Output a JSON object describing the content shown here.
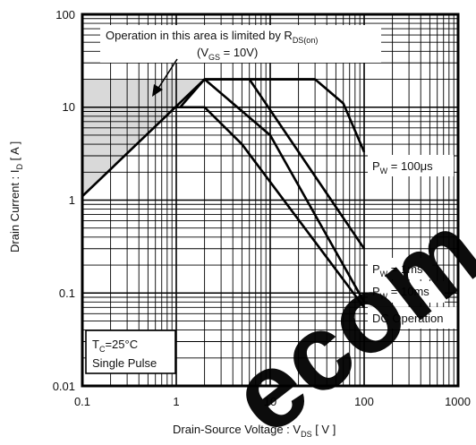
{
  "chart_data": {
    "type": "line",
    "xscale": "log",
    "yscale": "log",
    "xlim": [
      0.1,
      1000
    ],
    "ylim": [
      0.01,
      100
    ],
    "grid": true,
    "xticks": [
      "0.1",
      "1",
      "10",
      "100",
      "1000"
    ],
    "yticks": [
      "100",
      "10",
      "1",
      "0.1",
      "0.01"
    ],
    "xlabel": {
      "main": "Drain-Source  Voltage : V",
      "sub": "DS",
      "unit": " [ V ]"
    },
    "ylabel": {
      "main": "Drain  Current : I",
      "sub": "D",
      "unit": " [ A ]"
    },
    "limit_note": {
      "line1_main": "Operation in this area is limited by R",
      "line1_sub": "DS(on)",
      "line2_open": "(V",
      "line2_sub": "GS",
      "line2_close": " = 10V)"
    },
    "conditions": {
      "tc_main": "T",
      "tc_sub": "C",
      "tc_value": "=25°C",
      "pulse": "Single Pulse"
    },
    "rdson_limit": {
      "x": [
        0.1,
        2.0
      ],
      "y": [
        1.1,
        20
      ]
    },
    "series": [
      {
        "label_main": "P",
        "label_sub": "W",
        "label_value": " = 100μs",
        "x": [
          2.0,
          30,
          60,
          100
        ],
        "y": [
          20,
          20,
          11,
          3.3
        ]
      },
      {
        "label_main": "P",
        "label_sub": "W",
        "label_value": " = 1ms",
        "x": [
          6,
          100
        ],
        "y": [
          20,
          0.3
        ]
      },
      {
        "label_main": "P",
        "label_sub": "W",
        "label_value": " = 10ms",
        "x": [
          1.1,
          2.0,
          10,
          100
        ],
        "y": [
          10,
          20,
          5,
          0.08
        ]
      },
      {
        "label_main": "DC Operation",
        "label_sub": "",
        "label_value": "",
        "x": [
          1.0,
          2.0,
          5,
          100
        ],
        "y": [
          10,
          10,
          4,
          0.07
        ]
      }
    ],
    "current_limit": {
      "y": 20
    },
    "watermark": "ecom"
  }
}
